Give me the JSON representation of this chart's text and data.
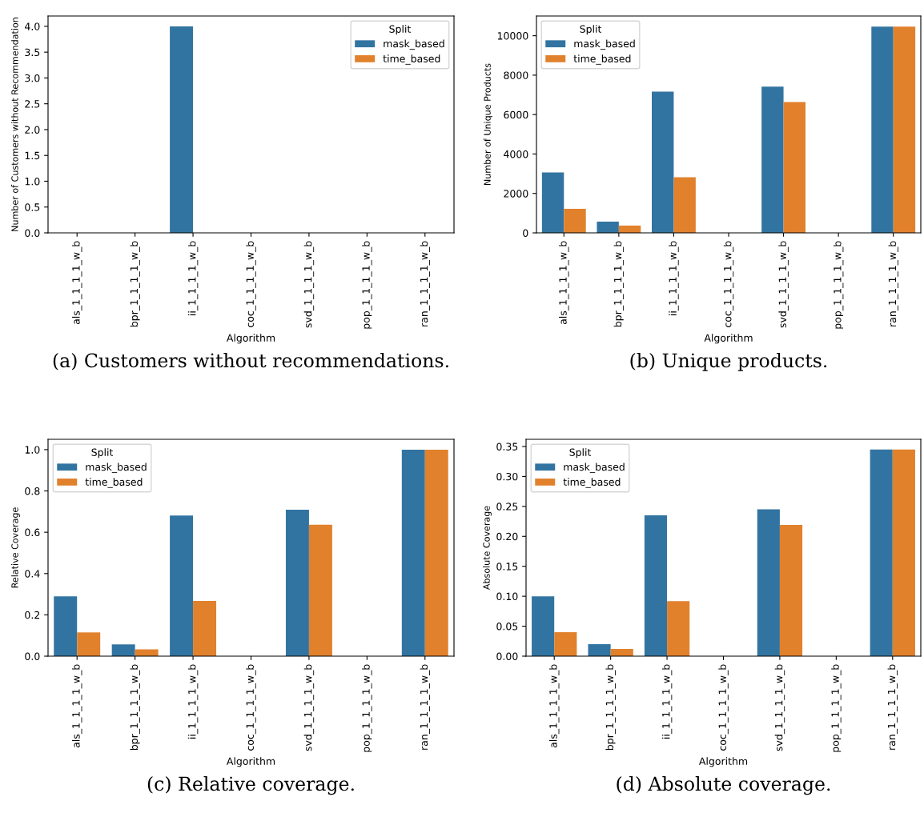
{
  "chart_data": [
    {
      "type": "bar",
      "title": "(a) Customers without recommendations.",
      "xlabel": "Algorithm",
      "ylabel": "Number of Customers without Recommendation",
      "legend_title": "Split",
      "legend": "top right",
      "categories": [
        "als_1_1_1_1_w_b",
        "bpr_1_1_1_1_w_b",
        "ii_1_1_1_1_w_b",
        "coc_1_1_1_1_w_b",
        "svd_1_1_1_1_w_b",
        "pop_1_1_1_1_w_b",
        "ran_1_1_1_1_w_b"
      ],
      "series": [
        {
          "name": "mask_based",
          "color": "#3274a1",
          "values": [
            0,
            0,
            4,
            0,
            0,
            0,
            0
          ]
        },
        {
          "name": "time_based",
          "color": "#e1812c",
          "values": [
            0,
            0,
            0,
            0,
            0,
            0,
            0
          ]
        }
      ],
      "ylim": [
        0,
        4.2
      ],
      "yticks": [
        {
          "value": 0,
          "label": "0.0"
        },
        0.5,
        {
          "value": 1,
          "label": "1.0"
        },
        1.5,
        {
          "value": 2,
          "label": "2.0"
        },
        2.5,
        {
          "value": 3,
          "label": "3.0"
        },
        3.5,
        {
          "value": 4,
          "label": "4.0"
        }
      ],
      "grid": false
    },
    {
      "type": "bar",
      "title": "(b) Unique products.",
      "xlabel": "Algorithm",
      "ylabel": "Number of Unique Products",
      "legend_title": "Split",
      "legend": "top left",
      "categories": [
        "als_1_1_1_1_w_b",
        "bpr_1_1_1_1_w_b",
        "ii_1_1_1_1_w_b",
        "coc_1_1_1_1_w_b",
        "svd_1_1_1_1_w_b",
        "pop_1_1_1_1_w_b",
        "ran_1_1_1_1_w_b"
      ],
      "series": [
        {
          "name": "mask_based",
          "color": "#3274a1",
          "values": [
            3060,
            570,
            7160,
            0,
            7420,
            0,
            10460
          ]
        },
        {
          "name": "time_based",
          "color": "#e1812c",
          "values": [
            1220,
            370,
            2820,
            0,
            6640,
            0,
            10460
          ]
        }
      ],
      "ylim": [
        0,
        11000
      ],
      "yticks": [
        0,
        2000,
        4000,
        6000,
        8000,
        10000
      ],
      "grid": false
    },
    {
      "type": "bar",
      "title": "(c) Relative coverage.",
      "xlabel": "Algorithm",
      "ylabel": "Relative Coverage",
      "legend_title": "Split",
      "legend": "top left",
      "categories": [
        "als_1_1_1_1_w_b",
        "bpr_1_1_1_1_w_b",
        "ii_1_1_1_1_w_b",
        "coc_1_1_1_1_w_b",
        "svd_1_1_1_1_w_b",
        "pop_1_1_1_1_w_b",
        "ran_1_1_1_1_w_b"
      ],
      "series": [
        {
          "name": "mask_based",
          "color": "#3274a1",
          "values": [
            0.29,
            0.057,
            0.681,
            0,
            0.709,
            0,
            1.0
          ]
        },
        {
          "name": "time_based",
          "color": "#e1812c",
          "values": [
            0.115,
            0.033,
            0.267,
            0,
            0.636,
            0,
            1.0
          ]
        }
      ],
      "ylim": [
        0,
        1.05
      ],
      "yticks": [
        {
          "value": 0,
          "label": "0.0"
        },
        0.2,
        0.4,
        0.6,
        0.8,
        {
          "value": 1,
          "label": "1.0"
        }
      ],
      "grid": false
    },
    {
      "type": "bar",
      "title": "(d) Absolute coverage.",
      "xlabel": "Algorithm",
      "ylabel": "Absolute Coverage",
      "legend_title": "Split",
      "legend": "top left",
      "categories": [
        "als_1_1_1_1_w_b",
        "bpr_1_1_1_1_w_b",
        "ii_1_1_1_1_w_b",
        "coc_1_1_1_1_w_b",
        "svd_1_1_1_1_w_b",
        "pop_1_1_1_1_w_b",
        "ran_1_1_1_1_w_b"
      ],
      "series": [
        {
          "name": "mask_based",
          "color": "#3274a1",
          "values": [
            0.1,
            0.02,
            0.235,
            0,
            0.245,
            0,
            0.345
          ]
        },
        {
          "name": "time_based",
          "color": "#e1812c",
          "values": [
            0.04,
            0.012,
            0.092,
            0,
            0.219,
            0,
            0.345
          ]
        }
      ],
      "ylim": [
        0,
        0.362
      ],
      "yticks": [
        {
          "value": 0,
          "label": "0.00"
        },
        0.05,
        {
          "value": 0.1,
          "label": "0.10"
        },
        0.15,
        {
          "value": 0.2,
          "label": "0.20"
        },
        0.25,
        {
          "value": 0.3,
          "label": "0.30"
        },
        0.35
      ],
      "grid": false
    }
  ]
}
